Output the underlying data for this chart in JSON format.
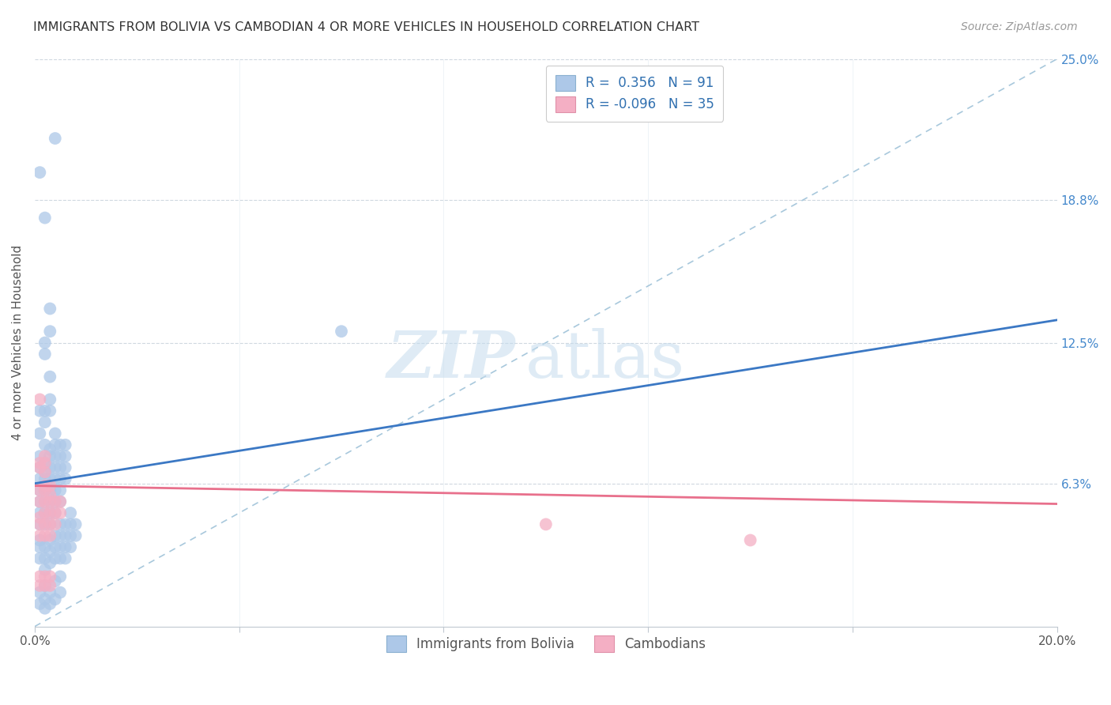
{
  "title": "IMMIGRANTS FROM BOLIVIA VS CAMBODIAN 4 OR MORE VEHICLES IN HOUSEHOLD CORRELATION CHART",
  "source": "Source: ZipAtlas.com",
  "ylabel": "4 or more Vehicles in Household",
  "xlim": [
    0.0,
    0.2
  ],
  "ylim": [
    0.0,
    0.25
  ],
  "xticks": [
    0.0,
    0.04,
    0.08,
    0.12,
    0.16,
    0.2
  ],
  "xtick_labels": [
    "0.0%",
    "",
    "",
    "",
    "",
    "20.0%"
  ],
  "ytick_labels_right": [
    "25.0%",
    "18.8%",
    "12.5%",
    "6.3%",
    ""
  ],
  "yticks_right": [
    0.25,
    0.188,
    0.125,
    0.063,
    0.0
  ],
  "bolivia_R": 0.356,
  "bolivia_N": 91,
  "cambodian_R": -0.096,
  "cambodian_N": 35,
  "bolivia_color": "#adc8e8",
  "cambodian_color": "#f4afc4",
  "trendline_bolivia_color": "#3b78c4",
  "trendline_cambodian_color": "#e8708c",
  "trendline_dashed_color": "#a8c8dc",
  "watermark_zip": "ZIP",
  "watermark_atlas": "atlas",
  "legend_label_bolivia": "Immigrants from Bolivia",
  "legend_label_cambodian": "Cambodians",
  "bolivia_trendline": [
    [
      0.0,
      0.063
    ],
    [
      0.2,
      0.135
    ]
  ],
  "cambodian_trendline": [
    [
      0.0,
      0.062
    ],
    [
      0.2,
      0.054
    ]
  ],
  "dashed_line": [
    [
      0.0,
      0.0
    ],
    [
      0.2,
      0.25
    ]
  ],
  "bolivia_scatter": [
    [
      0.001,
      0.2
    ],
    [
      0.002,
      0.18
    ],
    [
      0.004,
      0.215
    ],
    [
      0.001,
      0.095
    ],
    [
      0.002,
      0.095
    ],
    [
      0.002,
      0.12
    ],
    [
      0.002,
      0.125
    ],
    [
      0.003,
      0.11
    ],
    [
      0.003,
      0.13
    ],
    [
      0.003,
      0.14
    ],
    [
      0.001,
      0.075
    ],
    [
      0.001,
      0.085
    ],
    [
      0.002,
      0.08
    ],
    [
      0.002,
      0.09
    ],
    [
      0.003,
      0.095
    ],
    [
      0.003,
      0.1
    ],
    [
      0.001,
      0.06
    ],
    [
      0.001,
      0.065
    ],
    [
      0.001,
      0.07
    ],
    [
      0.002,
      0.06
    ],
    [
      0.002,
      0.065
    ],
    [
      0.002,
      0.068
    ],
    [
      0.002,
      0.072
    ],
    [
      0.003,
      0.065
    ],
    [
      0.003,
      0.07
    ],
    [
      0.003,
      0.075
    ],
    [
      0.003,
      0.078
    ],
    [
      0.004,
      0.065
    ],
    [
      0.004,
      0.07
    ],
    [
      0.004,
      0.075
    ],
    [
      0.004,
      0.08
    ],
    [
      0.004,
      0.085
    ],
    [
      0.001,
      0.045
    ],
    [
      0.001,
      0.05
    ],
    [
      0.001,
      0.055
    ],
    [
      0.002,
      0.045
    ],
    [
      0.002,
      0.05
    ],
    [
      0.002,
      0.055
    ],
    [
      0.003,
      0.045
    ],
    [
      0.003,
      0.05
    ],
    [
      0.003,
      0.055
    ],
    [
      0.003,
      0.06
    ],
    [
      0.004,
      0.05
    ],
    [
      0.004,
      0.055
    ],
    [
      0.004,
      0.06
    ],
    [
      0.005,
      0.055
    ],
    [
      0.005,
      0.06
    ],
    [
      0.005,
      0.065
    ],
    [
      0.005,
      0.07
    ],
    [
      0.005,
      0.075
    ],
    [
      0.005,
      0.08
    ],
    [
      0.006,
      0.065
    ],
    [
      0.006,
      0.07
    ],
    [
      0.006,
      0.075
    ],
    [
      0.006,
      0.08
    ],
    [
      0.001,
      0.03
    ],
    [
      0.001,
      0.035
    ],
    [
      0.001,
      0.038
    ],
    [
      0.002,
      0.025
    ],
    [
      0.002,
      0.03
    ],
    [
      0.002,
      0.035
    ],
    [
      0.003,
      0.028
    ],
    [
      0.003,
      0.033
    ],
    [
      0.003,
      0.038
    ],
    [
      0.004,
      0.03
    ],
    [
      0.004,
      0.035
    ],
    [
      0.004,
      0.04
    ],
    [
      0.005,
      0.03
    ],
    [
      0.005,
      0.035
    ],
    [
      0.005,
      0.04
    ],
    [
      0.005,
      0.045
    ],
    [
      0.006,
      0.03
    ],
    [
      0.006,
      0.035
    ],
    [
      0.006,
      0.04
    ],
    [
      0.006,
      0.045
    ],
    [
      0.007,
      0.035
    ],
    [
      0.007,
      0.04
    ],
    [
      0.007,
      0.045
    ],
    [
      0.007,
      0.05
    ],
    [
      0.008,
      0.04
    ],
    [
      0.008,
      0.045
    ],
    [
      0.001,
      0.01
    ],
    [
      0.001,
      0.015
    ],
    [
      0.002,
      0.008
    ],
    [
      0.002,
      0.012
    ],
    [
      0.002,
      0.018
    ],
    [
      0.003,
      0.01
    ],
    [
      0.003,
      0.015
    ],
    [
      0.004,
      0.012
    ],
    [
      0.004,
      0.02
    ],
    [
      0.005,
      0.015
    ],
    [
      0.005,
      0.022
    ],
    [
      0.06,
      0.13
    ]
  ],
  "cambodian_scatter": [
    [
      0.001,
      0.1
    ],
    [
      0.001,
      0.07
    ],
    [
      0.001,
      0.072
    ],
    [
      0.002,
      0.068
    ],
    [
      0.002,
      0.072
    ],
    [
      0.002,
      0.075
    ],
    [
      0.001,
      0.055
    ],
    [
      0.001,
      0.06
    ],
    [
      0.002,
      0.055
    ],
    [
      0.002,
      0.06
    ],
    [
      0.002,
      0.062
    ],
    [
      0.003,
      0.058
    ],
    [
      0.003,
      0.062
    ],
    [
      0.001,
      0.04
    ],
    [
      0.001,
      0.045
    ],
    [
      0.001,
      0.048
    ],
    [
      0.002,
      0.04
    ],
    [
      0.002,
      0.045
    ],
    [
      0.002,
      0.05
    ],
    [
      0.003,
      0.04
    ],
    [
      0.003,
      0.045
    ],
    [
      0.003,
      0.05
    ],
    [
      0.003,
      0.055
    ],
    [
      0.004,
      0.045
    ],
    [
      0.004,
      0.05
    ],
    [
      0.004,
      0.055
    ],
    [
      0.005,
      0.05
    ],
    [
      0.005,
      0.055
    ],
    [
      0.001,
      0.018
    ],
    [
      0.001,
      0.022
    ],
    [
      0.002,
      0.018
    ],
    [
      0.002,
      0.022
    ],
    [
      0.003,
      0.018
    ],
    [
      0.003,
      0.022
    ],
    [
      0.1,
      0.045
    ],
    [
      0.14,
      0.038
    ]
  ]
}
